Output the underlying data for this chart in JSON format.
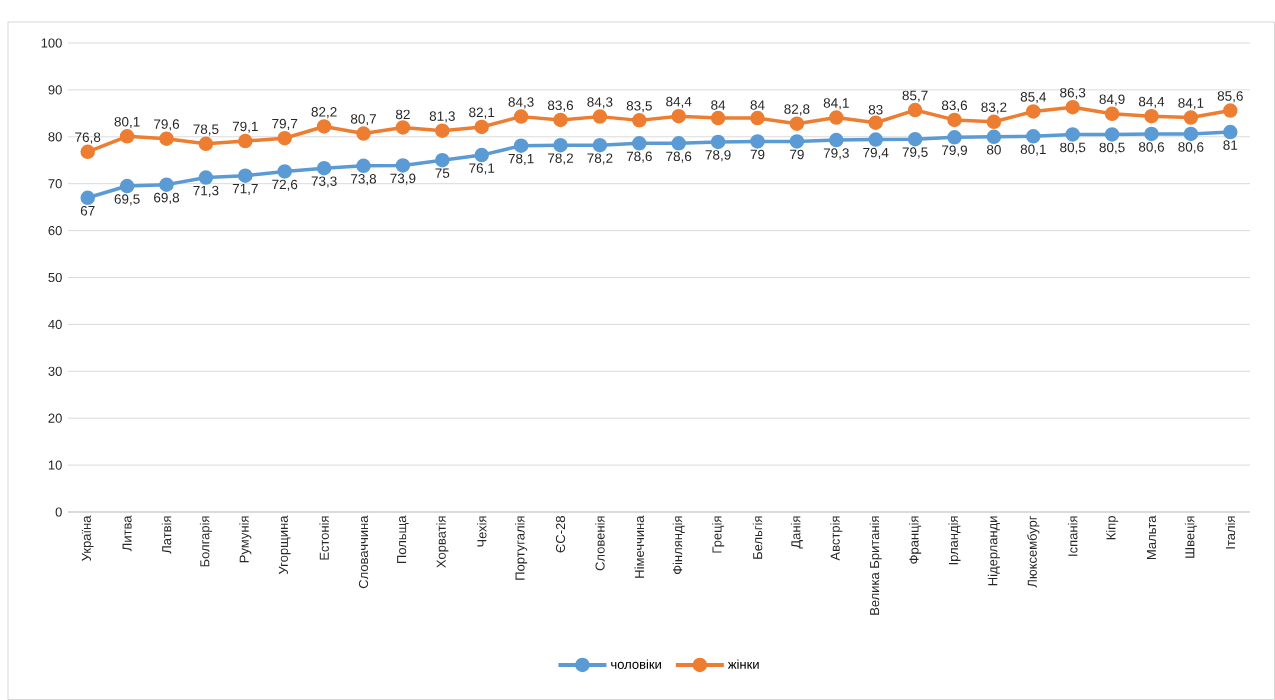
{
  "chart_data": {
    "type": "line",
    "categories": [
      "Україна",
      "Литва",
      "Латвія",
      "Болгарія",
      "Румунія",
      "Угорщина",
      "Естонія",
      "Словаччина",
      "Польща",
      "Хорватія",
      "Чехія",
      "Португалія",
      "ЄС-28",
      "Словенія",
      "Німеччина",
      "Фінляндія",
      "Греція",
      "Бельгія",
      "Данія",
      "Австрія",
      "Велика Британія",
      "Франція",
      "Ірландія",
      "Нідерланди",
      "Люксембург",
      "Іспанія",
      "Кіпр",
      "Мальта",
      "Швеція",
      "Італія"
    ],
    "series": [
      {
        "name": "чоловіки",
        "color": "#5b9bd5",
        "values": [
          67,
          69.5,
          69.8,
          71.3,
          71.7,
          72.6,
          73.3,
          73.8,
          73.9,
          75,
          76.1,
          78.1,
          78.2,
          78.2,
          78.6,
          78.6,
          78.9,
          79,
          79,
          79.3,
          79.4,
          79.5,
          79.9,
          80,
          80.1,
          80.5,
          80.5,
          80.6,
          80.6,
          81
        ],
        "value_labels": [
          "67",
          "69,5",
          "69,8",
          "71,3",
          "71,7",
          "72,6",
          "73,3",
          "73,8",
          "73,9",
          "75",
          "76,1",
          "78,1",
          "78,2",
          "78,2",
          "78,6",
          "78,6",
          "78,9",
          "79",
          "79",
          "79,3",
          "79,4",
          "79,5",
          "79,9",
          "80",
          "80,1",
          "80,5",
          "80,5",
          "80,6",
          "80,6",
          "81"
        ]
      },
      {
        "name": "жінки",
        "color": "#ed7d31",
        "values": [
          76.8,
          80.1,
          79.6,
          78.5,
          79.1,
          79.7,
          82.2,
          80.7,
          82,
          81.3,
          82.1,
          84.3,
          83.6,
          84.3,
          83.5,
          84.4,
          84,
          84,
          82.8,
          84.1,
          83,
          85.7,
          83.6,
          83.2,
          85.4,
          86.3,
          84.9,
          84.4,
          84.1,
          85.6
        ],
        "value_labels": [
          "76,8",
          "80,1",
          "79,6",
          "78,5",
          "79,1",
          "79,7",
          "82,2",
          "80,7",
          "82",
          "81,3",
          "82,1",
          "84,3",
          "83,6",
          "84,3",
          "83,5",
          "84,4",
          "84",
          "84",
          "82,8",
          "84,1",
          "83",
          "85,7",
          "83,6",
          "83,2",
          "85,4",
          "86,3",
          "84,9",
          "84,4",
          "84,1",
          "85,6"
        ]
      }
    ],
    "marker": "circle",
    "line_style": "solid",
    "ylim": [
      0,
      100
    ],
    "yticks": [
      0,
      10,
      20,
      30,
      40,
      50,
      60,
      70,
      80,
      90,
      100
    ],
    "grid": "y",
    "legend": "bottom"
  }
}
